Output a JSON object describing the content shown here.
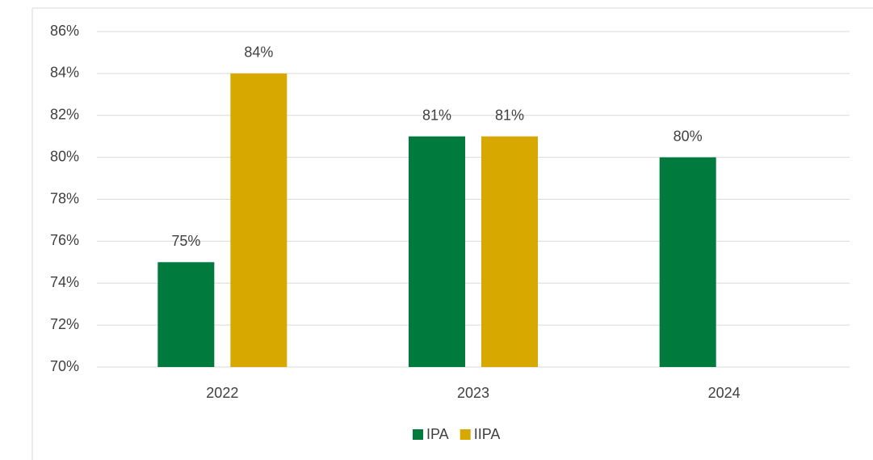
{
  "chart_data": {
    "type": "bar",
    "categories": [
      "2022",
      "2023",
      "2024"
    ],
    "series": [
      {
        "name": "IPA",
        "color": "#007a3d",
        "values": [
          75,
          81,
          80
        ],
        "value_labels": [
          "75%",
          "81%",
          "80%"
        ]
      },
      {
        "name": "IIPA",
        "color": "#d6a800",
        "values": [
          84,
          81,
          null
        ],
        "value_labels": [
          "84%",
          "81%",
          null
        ]
      }
    ],
    "ylim": [
      70,
      86
    ],
    "yticks": [
      {
        "value": 70,
        "label": "70%"
      },
      {
        "value": 72,
        "label": "72%"
      },
      {
        "value": 74,
        "label": "74%"
      },
      {
        "value": 76,
        "label": "76%"
      },
      {
        "value": 78,
        "label": "78%"
      },
      {
        "value": 80,
        "label": "80%"
      },
      {
        "value": 82,
        "label": "82%"
      },
      {
        "value": 84,
        "label": "84%"
      },
      {
        "value": 86,
        "label": "86%"
      }
    ],
    "grid": true,
    "legend": "bottom"
  }
}
